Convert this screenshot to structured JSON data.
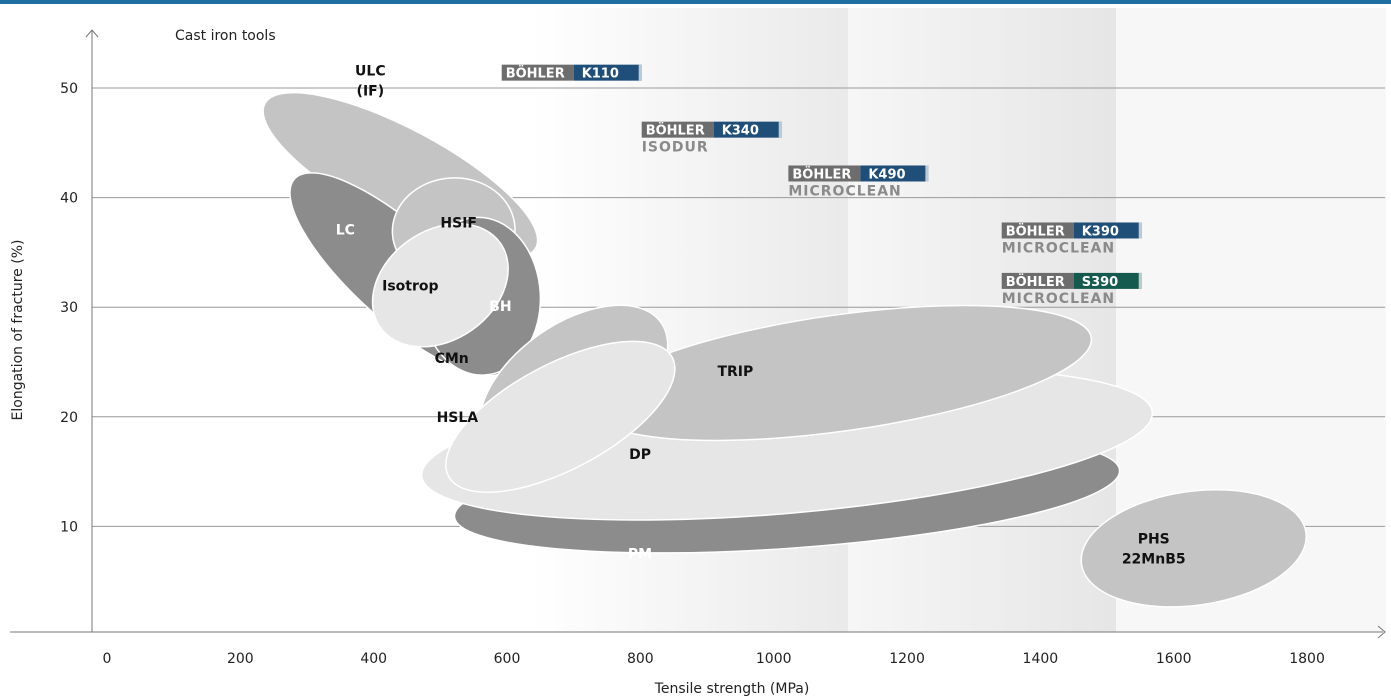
{
  "chart_data": {
    "type": "bubble",
    "xlabel": "Tensile strength (MPa)",
    "ylabel": "Elongation of fracture (%)",
    "x_ticks": [
      "0",
      "200",
      "400",
      "600",
      "800",
      "1000",
      "1200",
      "1400",
      "1600",
      "1800"
    ],
    "y_ticks": [
      "10",
      "20",
      "30",
      "40",
      "50"
    ],
    "xlim": [
      0,
      1900
    ],
    "ylim": [
      0,
      55
    ],
    "grid": "horizontal",
    "category_label": "Cast iron tools",
    "steel_groups": [
      {
        "name": "ULC (IF)",
        "lines": [
          "ULC",
          "(IF)"
        ],
        "cx": 440,
        "cy": 42,
        "rx": 70,
        "ry": 14,
        "angle": -62,
        "shade": "light",
        "text_color": "dark"
      },
      {
        "name": "LC",
        "lines": [
          "LC"
        ],
        "cx": 440,
        "cy": 33,
        "rx": 70,
        "ry": 13,
        "angle": -48,
        "shade": "dark",
        "text_color": "light"
      },
      {
        "name": "HSIF",
        "lines": [
          "HSIF"
        ],
        "cx": 520,
        "cy": 37,
        "rx": 92,
        "ry": 4.8,
        "angle": -3,
        "shade": "light",
        "text_color": "dark"
      },
      {
        "name": "BH",
        "lines": [
          "BH"
        ],
        "cx": 560,
        "cy": 31,
        "rx": 90,
        "ry": 7.2,
        "angle": -3,
        "shade": "dark",
        "text_color": "light"
      },
      {
        "name": "Isotrop",
        "lines": [
          "Isotrop"
        ],
        "cx": 500,
        "cy": 32,
        "rx": 110,
        "ry": 5,
        "angle": -35,
        "shade": "lighter",
        "text_color": "dark"
      },
      {
        "name": "CMn",
        "lines": [
          "CMn"
        ],
        "cx": 700,
        "cy": 23,
        "rx": 160,
        "ry": 5.5,
        "angle": -35,
        "shade": "light",
        "text_color": "dark"
      },
      {
        "name": "PM",
        "lines": [
          "PM"
        ],
        "cx": 1020,
        "cy": 13,
        "rx": 500,
        "ry": 5,
        "angle": -4,
        "shade": "dark",
        "text_color": "light"
      },
      {
        "name": "DP",
        "lines": [
          "DP"
        ],
        "cx": 1020,
        "cy": 17.5,
        "rx": 550,
        "ry": 6.3,
        "angle": -5,
        "shade": "lighter",
        "text_color": "dark"
      },
      {
        "name": "TRIP",
        "lines": [
          "TRIP"
        ],
        "cx": 1100,
        "cy": 24,
        "rx": 380,
        "ry": 5.3,
        "angle": -8,
        "shade": "light",
        "text_color": "dark"
      },
      {
        "name": "HSLA",
        "lines": [
          "HSLA"
        ],
        "cx": 680,
        "cy": 20,
        "rx": 190,
        "ry": 4.8,
        "angle": -28,
        "shade": "lighter",
        "text_color": "dark"
      },
      {
        "name": "PHS 22MnB5",
        "lines": [
          "PHS",
          "22MnB5"
        ],
        "cx": 1630,
        "cy": 8,
        "rx": 170,
        "ry": 5.2,
        "angle": -8,
        "shade": "light",
        "text_color": "dark"
      }
    ],
    "tools": [
      {
        "brand": "BÖHLER",
        "grade": "K110",
        "x": 700,
        "y": 51.4,
        "grade_color": "#1f4e79",
        "sub": ""
      },
      {
        "brand": "BÖHLER",
        "grade": "K340",
        "x": 910,
        "y": 46.2,
        "grade_color": "#1f4e79",
        "sub": "ISODUR"
      },
      {
        "brand": "BÖHLER",
        "grade": "K490",
        "x": 1130,
        "y": 42.2,
        "grade_color": "#1f4e79",
        "sub": "MICROCLEAN"
      },
      {
        "brand": "BÖHLER",
        "grade": "K390",
        "x": 1450,
        "y": 37,
        "grade_color": "#1f4e79",
        "sub": "MICROCLEAN"
      },
      {
        "brand": "BÖHLER",
        "grade": "S390",
        "x": 1450,
        "y": 32.4,
        "grade_color": "#145a4e",
        "sub": "MICROCLEAN"
      }
    ],
    "colors": {
      "dark": "#8c8c8c",
      "light": "#c4c4c4",
      "lighter": "#e6e6e6",
      "brand": "#6d6d6d",
      "top_rule": "#1d6fa1"
    }
  }
}
